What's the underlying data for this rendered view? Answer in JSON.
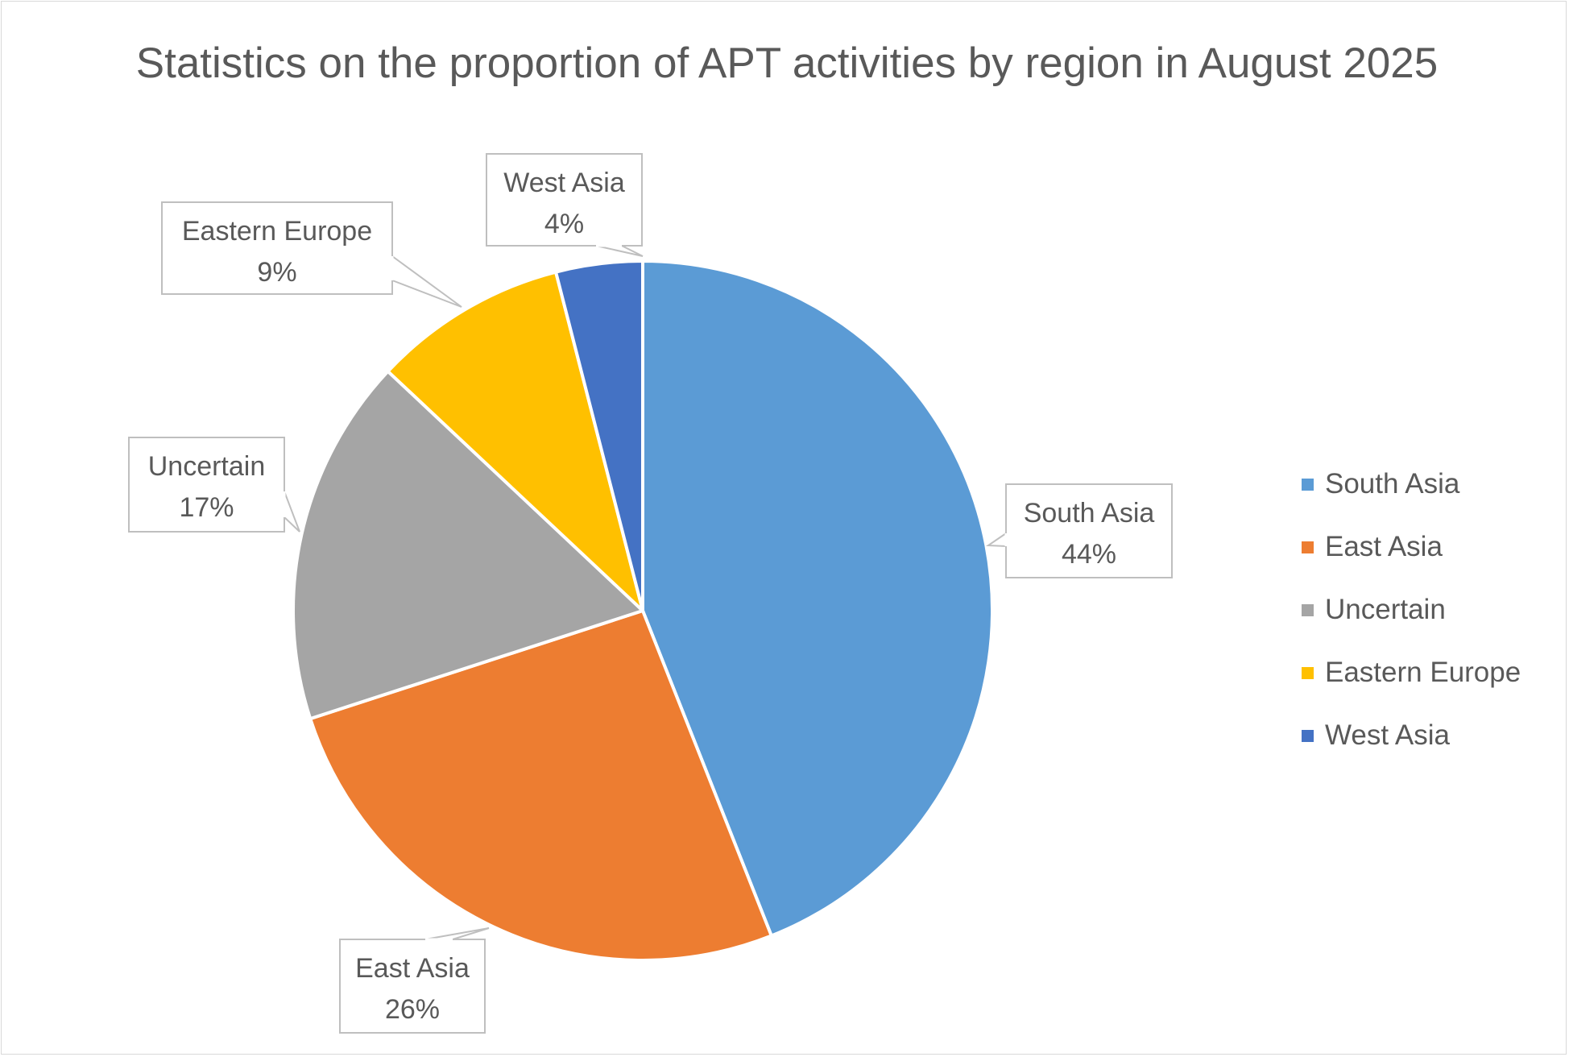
{
  "chart_data": {
    "type": "pie",
    "title": "Statistics on the proportion of APT activities by region in August 2025",
    "slices": [
      {
        "label": "South Asia",
        "value": 44,
        "display": "44%",
        "color": "#5B9BD5"
      },
      {
        "label": "East Asia",
        "value": 26,
        "display": "26%",
        "color": "#ED7D31"
      },
      {
        "label": "Uncertain",
        "value": 17,
        "display": "17%",
        "color": "#A5A5A5"
      },
      {
        "label": "Eastern Europe",
        "value": 9,
        "display": "9%",
        "color": "#FFC000"
      },
      {
        "label": "West Asia",
        "value": 4,
        "display": "4%",
        "color": "#4472C4"
      }
    ],
    "legend_position": "right",
    "start_angle": "12 o'clock, clockwise"
  }
}
